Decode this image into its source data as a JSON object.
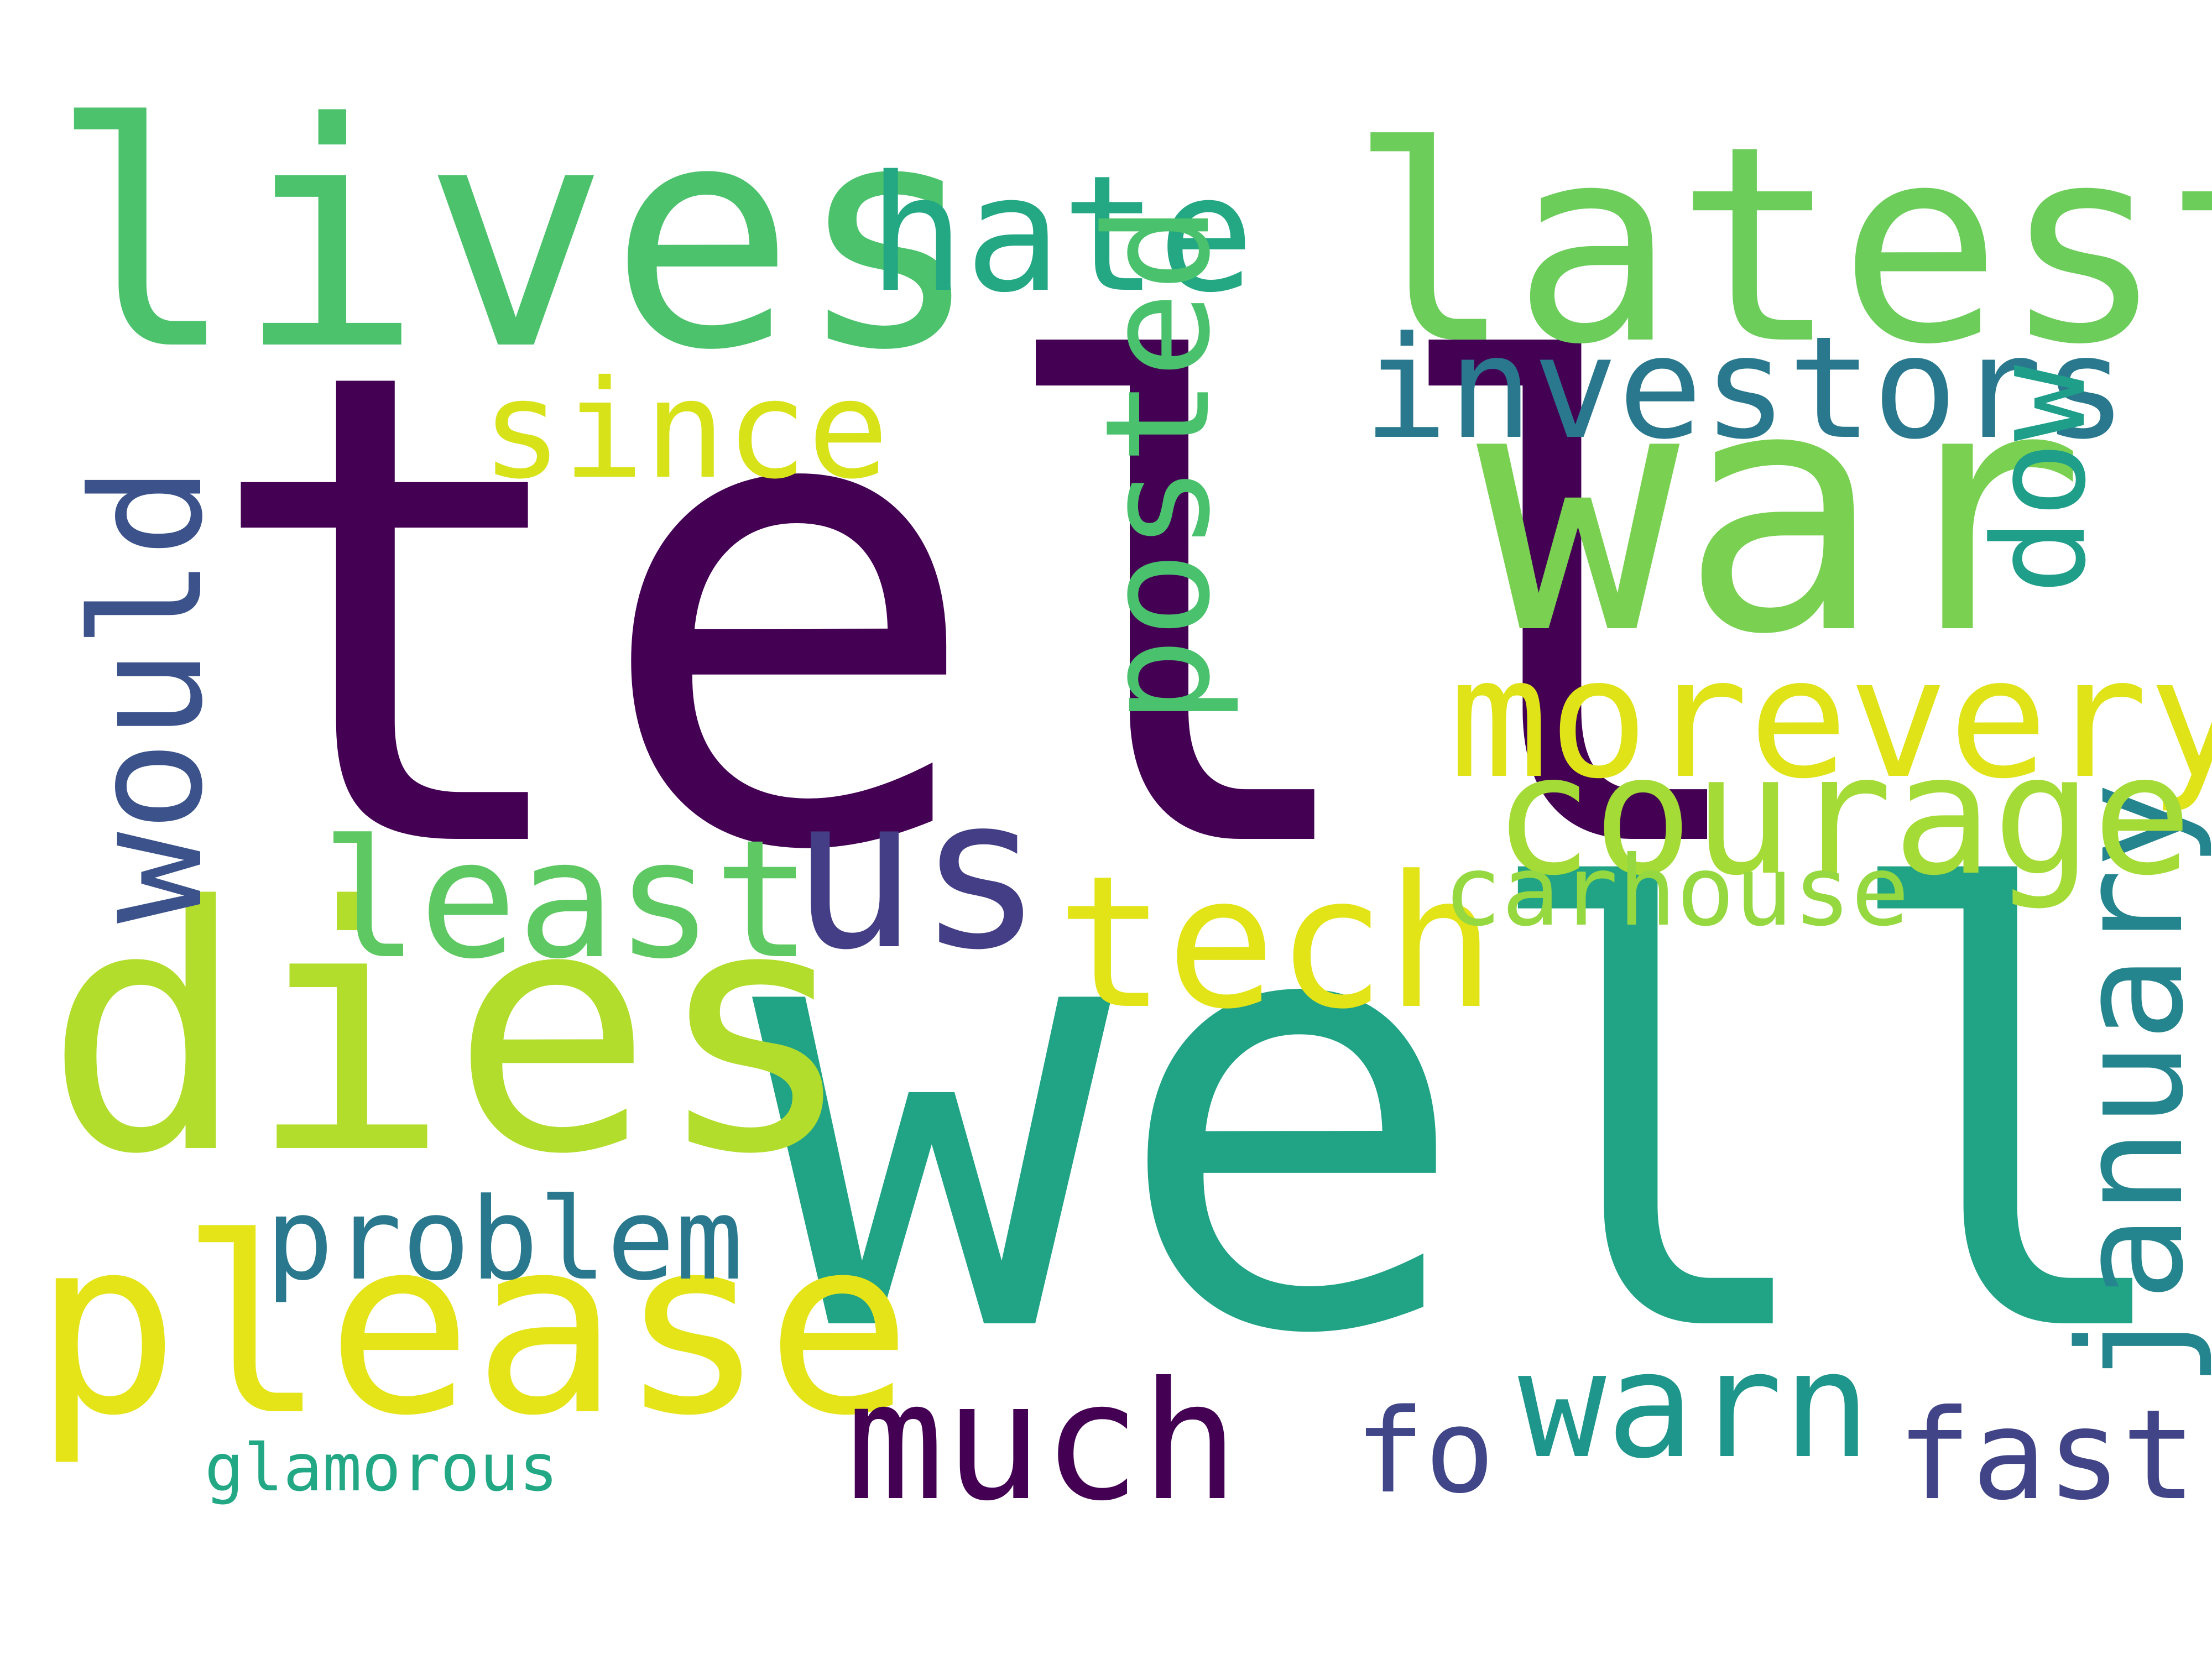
{
  "words": [
    {
      "text": "tell",
      "color": "#440154"
    },
    {
      "text": "well",
      "color": "#21a385"
    },
    {
      "text": "lives",
      "color": "#4cc26c"
    },
    {
      "text": "latest",
      "color": "#6ccd5a"
    },
    {
      "text": "war",
      "color": "#7ad151"
    },
    {
      "text": "dies",
      "color": "#b2dd2d"
    },
    {
      "text": "please",
      "color": "#e5e419"
    },
    {
      "text": "hate",
      "color": "#23a883"
    },
    {
      "text": "investors",
      "color": "#2a788e"
    },
    {
      "text": "since",
      "color": "#d8e219"
    },
    {
      "text": "posted",
      "color": "#4ac16d"
    },
    {
      "text": "dow",
      "color": "#1f9e89"
    },
    {
      "text": "would",
      "color": "#3b528b"
    },
    {
      "text": "morevery",
      "color": "#dfe318"
    },
    {
      "text": "courage",
      "color": "#a5db36"
    },
    {
      "text": "us",
      "color": "#433e85"
    },
    {
      "text": "least",
      "color": "#5ec962"
    },
    {
      "text": "tech",
      "color": "#e2e418"
    },
    {
      "text": "carhouse",
      "color": "#95d840"
    },
    {
      "text": "january",
      "color": "#25858e"
    },
    {
      "text": "problem",
      "color": "#2a788e"
    },
    {
      "text": "much",
      "color": "#440154"
    },
    {
      "text": "warn",
      "color": "#1f968b"
    },
    {
      "text": "fo",
      "color": "#404688"
    },
    {
      "text": "fast",
      "color": "#414487"
    },
    {
      "text": "glamorous",
      "color": "#22a884"
    }
  ]
}
